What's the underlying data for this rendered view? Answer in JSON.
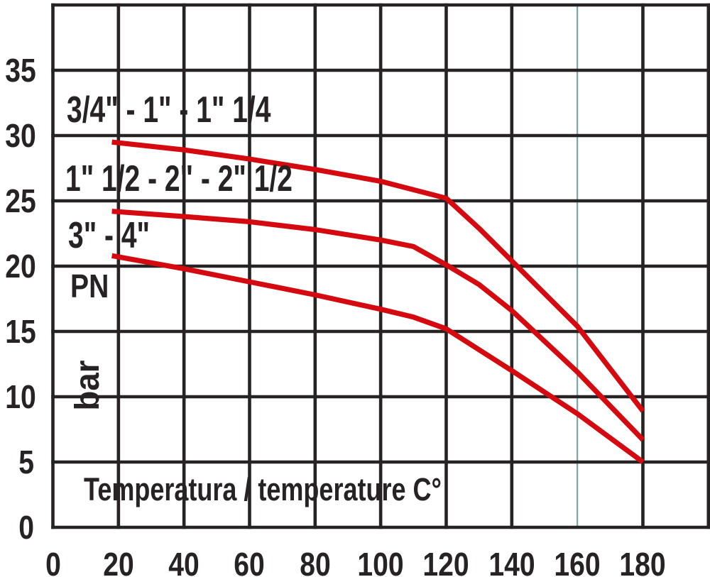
{
  "colors": {
    "line_red": "#d40a10",
    "grid": "#272223",
    "text": "#272223",
    "highlight_gridline": "#7aa6a5",
    "background": "#ffffff"
  },
  "labels": {
    "series_1": "3/4\" - 1\" - 1\" 1/4",
    "series_2": "1\" 1/2 - 2\" - 2\" 1/2",
    "series_3": "3\" - 4\"",
    "y_axis_quantity": "PN",
    "y_axis_unit": "bar",
    "x_axis_title": "Temperatura / temperature C°"
  },
  "chart_data": {
    "type": "line",
    "title": "",
    "xlabel": "Temperatura / temperature C°",
    "ylabel": "PN (bar)",
    "xlim": [
      0,
      200
    ],
    "ylim": [
      0,
      40
    ],
    "x_ticks": [
      0,
      20,
      40,
      60,
      80,
      100,
      120,
      140,
      160,
      180
    ],
    "y_ticks": [
      0,
      5,
      10,
      15,
      20,
      25,
      30,
      35
    ],
    "x_gridlines": [
      0,
      20,
      40,
      60,
      80,
      100,
      120,
      140,
      160,
      180,
      200
    ],
    "y_gridlines": [
      0,
      5,
      10,
      15,
      20,
      25,
      30,
      35,
      40
    ],
    "highlight_x_gridline": 160,
    "grid": true,
    "legend_position": "inline-above-each-curve",
    "series": [
      {
        "name": "3/4\" - 1\" - 1\" 1/4",
        "color": "#d40a10",
        "points": [
          [
            18,
            29.5
          ],
          [
            40,
            28.9
          ],
          [
            60,
            28.2
          ],
          [
            80,
            27.4
          ],
          [
            100,
            26.5
          ],
          [
            120,
            25.2
          ],
          [
            130,
            22.9
          ],
          [
            140,
            20.4
          ],
          [
            160,
            15.4
          ],
          [
            180,
            8.9
          ]
        ]
      },
      {
        "name": "1\" 1/2 - 2\" - 2\" 1/2",
        "color": "#d40a10",
        "points": [
          [
            18,
            24.2
          ],
          [
            40,
            23.8
          ],
          [
            60,
            23.4
          ],
          [
            80,
            22.8
          ],
          [
            100,
            22.0
          ],
          [
            110,
            21.5
          ],
          [
            120,
            20.1
          ],
          [
            130,
            18.6
          ],
          [
            140,
            16.6
          ],
          [
            160,
            11.9
          ],
          [
            180,
            6.7
          ]
        ]
      },
      {
        "name": "3\" - 4\"",
        "color": "#d40a10",
        "points": [
          [
            18,
            20.8
          ],
          [
            40,
            19.8
          ],
          [
            60,
            18.8
          ],
          [
            80,
            17.8
          ],
          [
            100,
            16.7
          ],
          [
            110,
            16.1
          ],
          [
            120,
            15.2
          ],
          [
            140,
            12.0
          ],
          [
            160,
            8.7
          ],
          [
            180,
            5.0
          ]
        ]
      }
    ]
  }
}
